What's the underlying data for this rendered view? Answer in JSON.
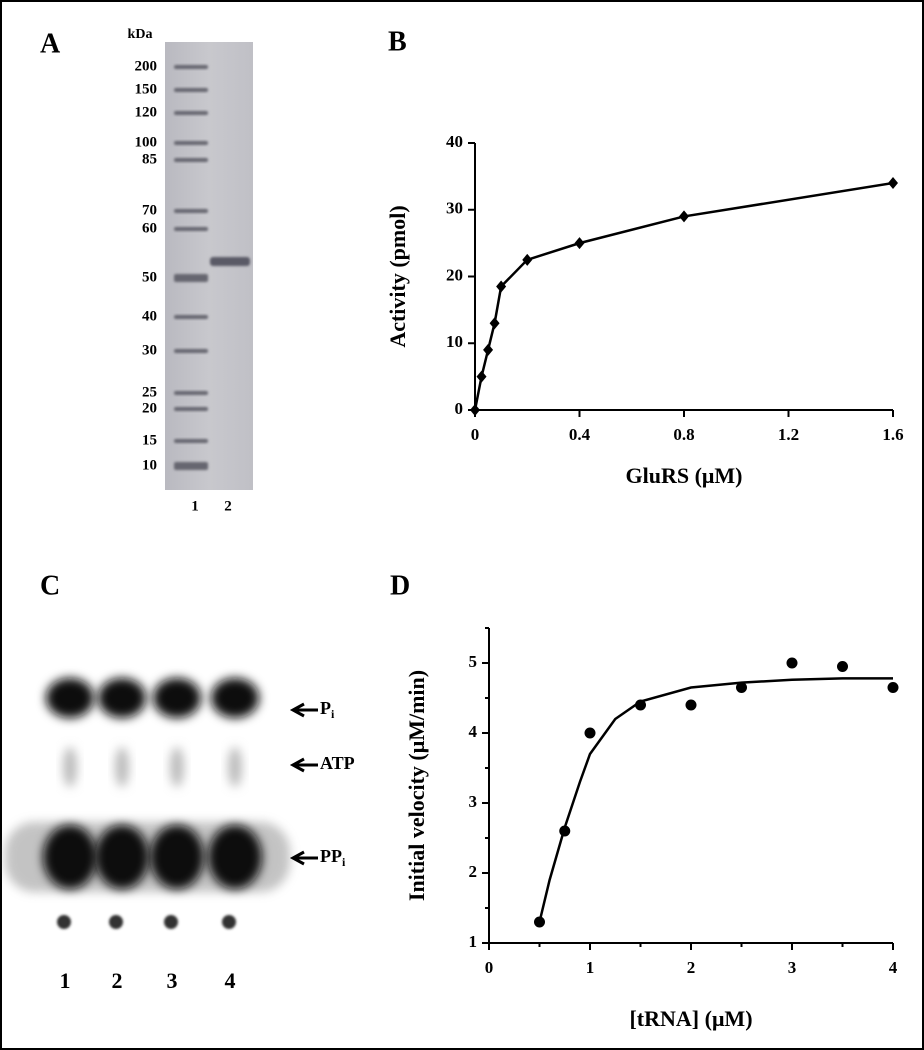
{
  "panel_labels": [
    "A",
    "B",
    "C",
    "D"
  ],
  "gel_a": {
    "unit": "kDa",
    "markers": [
      200,
      150,
      120,
      100,
      85,
      70,
      60,
      50,
      40,
      30,
      25,
      20,
      15,
      10
    ],
    "lanes": [
      "1",
      "2"
    ]
  },
  "gel_c": {
    "lanes": [
      "1",
      "2",
      "3",
      "4"
    ],
    "spots": [
      {
        "main": "P",
        "sub": "i"
      },
      {
        "main": "ATP"
      },
      {
        "main": "PP",
        "sub": "i"
      }
    ]
  },
  "chart_data": [
    {
      "type": "line",
      "x_label": "GluRS (μM)",
      "y_label": "Activity (pmol)",
      "x": [
        0,
        0.025,
        0.05,
        0.075,
        0.1,
        0.2,
        0.4,
        0.8,
        1.6
      ],
      "series": [
        {
          "color": "#000000",
          "marker": "diamond",
          "values": [
            0,
            5,
            9,
            13,
            18.5,
            22.5,
            25,
            29,
            34
          ]
        }
      ],
      "xlim": [
        0,
        1.6
      ],
      "xticks": [
        0,
        0.4,
        0.8,
        1.2,
        1.6
      ],
      "ylim": [
        0,
        40
      ],
      "yticks": [
        0,
        10,
        20,
        30,
        40
      ]
    },
    {
      "type": "scatter",
      "x_label": "[tRNA] (μM)",
      "y_label": "Initial velocity (μM/min)",
      "series": [
        {
          "style": "markers",
          "color": "#000000",
          "x": [
            0.5,
            0.75,
            1,
            1.5,
            2,
            2.5,
            3,
            3.5,
            4
          ],
          "values": [
            1.3,
            2.6,
            4.0,
            4.4,
            4.4,
            4.65,
            5.0,
            4.95,
            4.65
          ]
        },
        {
          "style": "line",
          "color": "#000000",
          "x": [
            0.5,
            0.6,
            0.75,
            0.9,
            1,
            1.25,
            1.5,
            2,
            2.5,
            3,
            3.5,
            4
          ],
          "values": [
            1.3,
            1.9,
            2.65,
            3.3,
            3.7,
            4.2,
            4.45,
            4.65,
            4.72,
            4.76,
            4.78,
            4.78
          ]
        }
      ],
      "xlim": [
        0,
        4
      ],
      "xticks": [
        0,
        1,
        2,
        3,
        4
      ],
      "xminorticks": [
        0.5,
        1.5,
        2.5,
        3.5
      ],
      "ylim": [
        1,
        5.5
      ],
      "yticks": [
        1,
        2,
        3,
        4,
        5
      ],
      "yminorticks": [
        1.5,
        2.5,
        3.5,
        4.5,
        5.5
      ]
    }
  ]
}
